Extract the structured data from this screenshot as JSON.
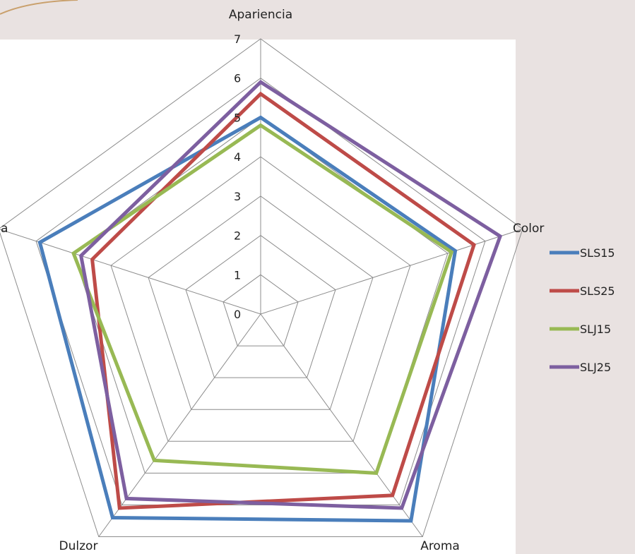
{
  "chart_data": {
    "type": "radar",
    "axes": [
      "Apariencia",
      "Color",
      "Aroma",
      "Dulzor",
      "Textura"
    ],
    "visible_axis_labels": [
      "Apariencia",
      "Color",
      "Aroma",
      "Dulzor",
      "a"
    ],
    "r_ticks": [
      "0",
      "1",
      "2",
      "3",
      "4",
      "5",
      "6",
      "7"
    ],
    "r_range": [
      0,
      7
    ],
    "grid": true,
    "legend_position": "right",
    "series": [
      {
        "name": "SLS15",
        "color": "#4a7ebb",
        "values": [
          5.0,
          5.2,
          6.5,
          6.4,
          5.9
        ]
      },
      {
        "name": "SLS25",
        "color": "#be4b48",
        "values": [
          5.6,
          5.7,
          5.7,
          6.1,
          4.5
        ]
      },
      {
        "name": "SLJ15",
        "color": "#98b954",
        "values": [
          4.8,
          5.1,
          5.0,
          4.6,
          5.0
        ]
      },
      {
        "name": "SLJ25",
        "color": "#7d5fa0",
        "values": [
          5.9,
          6.4,
          6.1,
          5.8,
          4.8
        ]
      }
    ]
  }
}
